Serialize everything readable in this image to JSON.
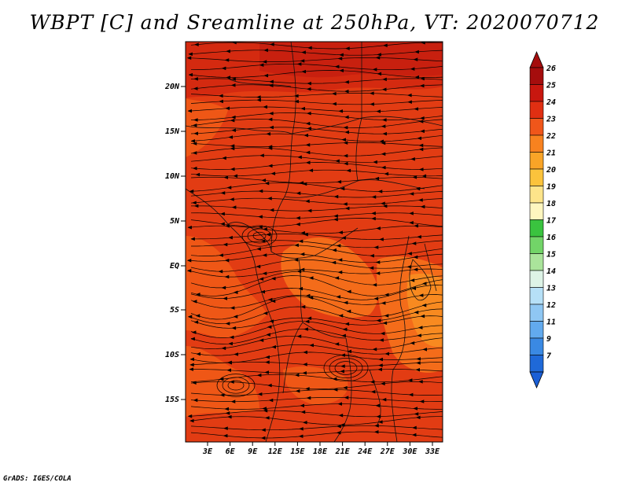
{
  "title": "WBPT [C] and Sreamline at 250hPa, VT: 2020070712",
  "credit": "GrADS: IGES/COLA",
  "map": {
    "lat_ticks": [
      "20N",
      "15N",
      "10N",
      "5N",
      "EQ",
      "5S",
      "10S",
      "15S"
    ],
    "lon_ticks": [
      "3E",
      "6E",
      "9E",
      "12E",
      "15E",
      "18E",
      "21E",
      "24E",
      "27E",
      "30E",
      "33E"
    ],
    "fill_colors": {
      "very_high": "#d42a10",
      "high": "#e23c13",
      "mid": "#ef5716",
      "low": "#f46c1a",
      "lowest": "#f88a20"
    }
  },
  "colorbar": {
    "labels": [
      "26",
      "25",
      "24",
      "23",
      "22",
      "21",
      "20",
      "19",
      "18",
      "17",
      "16",
      "15",
      "14",
      "13",
      "12",
      "11",
      "9",
      "7"
    ],
    "colors": [
      "#a50d0d",
      "#c8170f",
      "#e02f12",
      "#f0561a",
      "#f8821f",
      "#f9a427",
      "#fbc33c",
      "#fde48a",
      "#fef6bf",
      "#3ac33f",
      "#72d468",
      "#aae49b",
      "#ddf3e6",
      "#b6e0f7",
      "#8fc7f3",
      "#62aaee",
      "#3a89e3",
      "#1f69d8"
    ],
    "bottom_color": "#1a5fd6"
  }
}
